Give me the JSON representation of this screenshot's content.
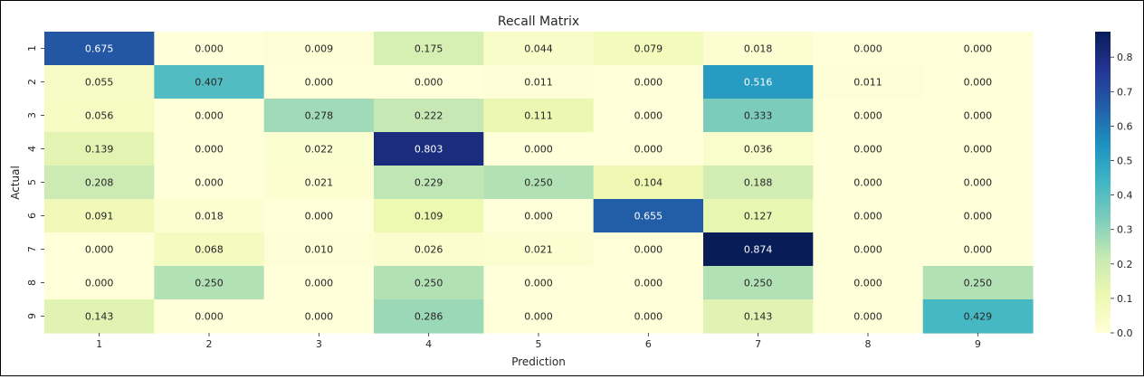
{
  "chart_data": {
    "type": "heatmap",
    "title": "Recall Matrix",
    "xlabel": "Prediction",
    "ylabel": "Actual",
    "x_categories": [
      "1",
      "2",
      "3",
      "4",
      "5",
      "6",
      "7",
      "8",
      "9"
    ],
    "y_categories": [
      "1",
      "2",
      "3",
      "4",
      "5",
      "6",
      "7",
      "8",
      "9"
    ],
    "values": [
      [
        0.675,
        0.0,
        0.009,
        0.175,
        0.044,
        0.079,
        0.018,
        0.0,
        0.0
      ],
      [
        0.055,
        0.407,
        0.0,
        0.0,
        0.011,
        0.0,
        0.516,
        0.011,
        0.0
      ],
      [
        0.056,
        0.0,
        0.278,
        0.222,
        0.111,
        0.0,
        0.333,
        0.0,
        0.0
      ],
      [
        0.139,
        0.0,
        0.022,
        0.803,
        0.0,
        0.0,
        0.036,
        0.0,
        0.0
      ],
      [
        0.208,
        0.0,
        0.021,
        0.229,
        0.25,
        0.104,
        0.188,
        0.0,
        0.0
      ],
      [
        0.091,
        0.018,
        0.0,
        0.109,
        0.0,
        0.655,
        0.127,
        0.0,
        0.0
      ],
      [
        0.0,
        0.068,
        0.01,
        0.026,
        0.021,
        0.0,
        0.874,
        0.0,
        0.0
      ],
      [
        0.0,
        0.25,
        0.0,
        0.25,
        0.0,
        0.0,
        0.25,
        0.0,
        0.25
      ],
      [
        0.143,
        0.0,
        0.0,
        0.286,
        0.0,
        0.0,
        0.143,
        0.0,
        0.429
      ]
    ],
    "colormap": "YlGnBu",
    "vmin": 0.0,
    "vmax": 0.874,
    "colorbar_ticks": [
      "0.0",
      "0.1",
      "0.2",
      "0.3",
      "0.4",
      "0.5",
      "0.6",
      "0.7",
      "0.8"
    ],
    "annotation_format": "0.3f",
    "grid": false,
    "colorbar_position": "right"
  }
}
